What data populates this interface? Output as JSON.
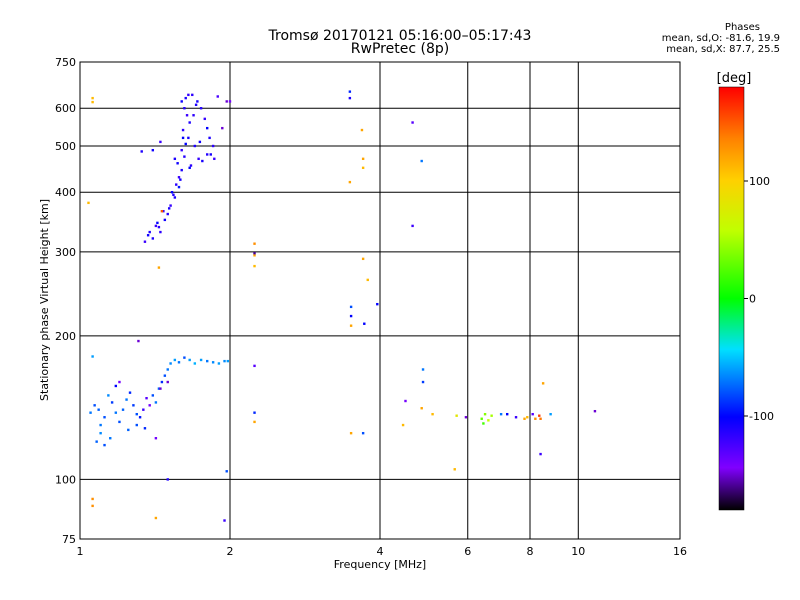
{
  "header": {
    "title": "Tromsø 20170121 05:16:00–05:17:43",
    "subtitle": "RwPretec (8p)"
  },
  "phases_legend": {
    "heading": "Phases",
    "line_o": "mean, sd,O: -81.6, 19.9",
    "line_x": "mean, sd,X:  87.7, 25.5"
  },
  "chart_data": {
    "type": "scatter",
    "title": "Tromsø 20170121 05:16:00–05:17:43",
    "subtitle": "RwPretec (8p)",
    "xlabel": "Frequency [MHz]",
    "ylabel": "Stationary phase Virtual Height [km]",
    "x_scale": "log",
    "y_scale": "log",
    "xlim": [
      1,
      16
    ],
    "ylim": [
      75,
      750
    ],
    "x_ticks": [
      1,
      2,
      4,
      6,
      8,
      10,
      16
    ],
    "x_tick_labels": [
      "1",
      "2",
      "4",
      "6",
      "8",
      "10",
      "16"
    ],
    "y_ticks": [
      75,
      100,
      200,
      300,
      400,
      500,
      600,
      750
    ],
    "y_tick_labels": [
      "75",
      "100",
      "200",
      "300",
      "400",
      "500",
      "600",
      "750"
    ],
    "grid": true,
    "colorbar": {
      "label": "[deg]",
      "range": [
        -180,
        180
      ],
      "ticks": [
        100,
        0,
        -100
      ],
      "tick_labels": [
        "100",
        "0",
        "-100"
      ]
    },
    "series": [
      {
        "points": [
          [
            1.4,
            320,
            -110
          ],
          [
            1.45,
            330,
            -115
          ],
          [
            1.42,
            340,
            -120
          ],
          [
            1.48,
            350,
            -105
          ],
          [
            1.5,
            360,
            -112
          ],
          [
            1.52,
            375,
            -118
          ],
          [
            1.55,
            390,
            -108
          ],
          [
            1.53,
            400,
            -100
          ],
          [
            1.56,
            415,
            -115
          ],
          [
            1.58,
            430,
            -120
          ],
          [
            1.6,
            445,
            -110
          ],
          [
            1.57,
            460,
            -105
          ],
          [
            1.62,
            475,
            -112
          ],
          [
            1.6,
            490,
            -118
          ],
          [
            1.63,
            505,
            -100
          ],
          [
            1.65,
            520,
            -108
          ],
          [
            1.61,
            540,
            -115
          ],
          [
            1.66,
            560,
            -110
          ],
          [
            1.64,
            580,
            -120
          ],
          [
            1.62,
            600,
            -112
          ],
          [
            1.6,
            620,
            -105
          ],
          [
            1.63,
            630,
            -110
          ],
          [
            1.68,
            640,
            -115
          ],
          [
            1.72,
            620,
            -108
          ],
          [
            1.75,
            600,
            -112
          ],
          [
            1.78,
            570,
            -118
          ],
          [
            1.8,
            545,
            -100
          ],
          [
            1.82,
            520,
            -110
          ],
          [
            1.85,
            500,
            -115
          ],
          [
            1.83,
            480,
            -108
          ],
          [
            1.86,
            470,
            -120
          ],
          [
            1.7,
            500,
            -110
          ],
          [
            1.67,
            455,
            -115
          ],
          [
            1.59,
            425,
            -108
          ],
          [
            1.54,
            395,
            -112
          ],
          [
            1.47,
            365,
            -118
          ],
          [
            1.43,
            345,
            -100
          ],
          [
            1.38,
            330,
            -110
          ],
          [
            1.35,
            315,
            -120
          ],
          [
            1.37,
            325,
            -105
          ],
          [
            1.44,
            338,
            -115
          ],
          [
            1.51,
            370,
            -110
          ],
          [
            1.58,
            410,
            -95
          ],
          [
            1.66,
            450,
            -100
          ],
          [
            1.74,
            510,
            -105
          ],
          [
            1.8,
            480,
            -112
          ],
          [
            1.76,
            465,
            -108
          ],
          [
            1.69,
            580,
            -115
          ],
          [
            1.71,
            610,
            -110
          ],
          [
            1.65,
            640,
            -118
          ],
          [
            1.97,
            620,
            -150
          ],
          [
            2.0,
            620,
            -140
          ],
          [
            1.93,
            545,
            -150
          ],
          [
            1.4,
            490,
            -105
          ],
          [
            1.33,
            487,
            -110
          ],
          [
            1.45,
            510,
            -120
          ],
          [
            1.89,
            635,
            -125
          ],
          [
            1.73,
            470,
            -118
          ],
          [
            1.55,
            470,
            -110
          ],
          [
            1.61,
            520,
            -100
          ],
          [
            1.06,
            630,
            110
          ],
          [
            1.06,
            618,
            110
          ],
          [
            1.04,
            380,
            110
          ],
          [
            1.44,
            278,
            120
          ],
          [
            1.46,
            365,
            150
          ],
          [
            1.31,
            195,
            -150
          ],
          [
            1.06,
            181,
            -60
          ],
          [
            1.07,
            143,
            -80
          ],
          [
            1.09,
            140,
            -75
          ],
          [
            1.1,
            130,
            -70
          ],
          [
            1.12,
            135,
            -80
          ],
          [
            1.14,
            150,
            -65
          ],
          [
            1.16,
            145,
            -85
          ],
          [
            1.18,
            138,
            -70
          ],
          [
            1.2,
            132,
            -80
          ],
          [
            1.22,
            140,
            -75
          ],
          [
            1.24,
            147,
            -70
          ],
          [
            1.26,
            152,
            -90
          ],
          [
            1.28,
            143,
            -85
          ],
          [
            1.3,
            137,
            -80
          ],
          [
            1.32,
            135,
            -95
          ],
          [
            1.34,
            140,
            -120
          ],
          [
            1.36,
            148,
            -130
          ],
          [
            1.38,
            143,
            -140
          ],
          [
            1.4,
            150,
            -80
          ],
          [
            1.42,
            145,
            -70
          ],
          [
            1.44,
            155,
            -75
          ],
          [
            1.46,
            160,
            -90
          ],
          [
            1.48,
            165,
            -80
          ],
          [
            1.5,
            170,
            -70
          ],
          [
            1.52,
            175,
            -65
          ],
          [
            1.55,
            178,
            -60
          ],
          [
            1.58,
            176,
            -70
          ],
          [
            1.62,
            180,
            -80
          ],
          [
            1.66,
            178,
            -60
          ],
          [
            1.7,
            175,
            -55
          ],
          [
            1.75,
            178,
            -60
          ],
          [
            1.8,
            177,
            -70
          ],
          [
            1.85,
            176,
            -65
          ],
          [
            1.9,
            175,
            -60
          ],
          [
            1.95,
            177,
            -65
          ],
          [
            1.98,
            177,
            -60
          ],
          [
            1.45,
            155,
            -150
          ],
          [
            1.42,
            122,
            -140
          ],
          [
            1.5,
            160,
            -150
          ],
          [
            1.2,
            160,
            -140
          ],
          [
            1.18,
            157,
            -100
          ],
          [
            1.35,
            128,
            -90
          ],
          [
            1.3,
            130,
            -80
          ],
          [
            1.25,
            127,
            -75
          ],
          [
            1.15,
            122,
            -70
          ],
          [
            1.1,
            125,
            -65
          ],
          [
            1.08,
            120,
            -75
          ],
          [
            1.12,
            118,
            -80
          ],
          [
            1.05,
            138,
            -70
          ],
          [
            1.06,
            91,
            130
          ],
          [
            1.06,
            88,
            130
          ],
          [
            1.42,
            83,
            120
          ],
          [
            1.5,
            100,
            -110
          ],
          [
            1.97,
            104,
            -80
          ],
          [
            1.95,
            82,
            -120
          ],
          [
            2.24,
            312,
            130
          ],
          [
            2.24,
            295,
            120
          ],
          [
            2.24,
            280,
            110
          ],
          [
            2.24,
            298,
            -160
          ],
          [
            2.24,
            173,
            -130
          ],
          [
            2.24,
            138,
            -90
          ],
          [
            2.24,
            132,
            120
          ],
          [
            3.48,
            650,
            -90
          ],
          [
            3.48,
            630,
            -110
          ],
          [
            3.48,
            420,
            120
          ],
          [
            3.68,
            540,
            120
          ],
          [
            3.7,
            470,
            120
          ],
          [
            3.7,
            450,
            110
          ],
          [
            3.7,
            290,
            120
          ],
          [
            3.78,
            262,
            110
          ],
          [
            3.5,
            230,
            -80
          ],
          [
            3.5,
            220,
            -100
          ],
          [
            3.5,
            210,
            120
          ],
          [
            3.72,
            212,
            -100
          ],
          [
            3.95,
            233,
            -100
          ],
          [
            3.5,
            125,
            120
          ],
          [
            3.7,
            125,
            -80
          ],
          [
            4.65,
            560,
            -130
          ],
          [
            4.65,
            340,
            -120
          ],
          [
            4.85,
            465,
            -70
          ],
          [
            4.88,
            170,
            -70
          ],
          [
            4.88,
            160,
            -85
          ],
          [
            4.5,
            146,
            -140
          ],
          [
            4.85,
            141,
            120
          ],
          [
            4.45,
            130,
            110
          ],
          [
            5.1,
            137,
            110
          ],
          [
            5.65,
            105,
            110
          ],
          [
            5.7,
            136,
            80
          ],
          [
            5.95,
            135,
            -150
          ],
          [
            6.4,
            134,
            30
          ],
          [
            6.5,
            137,
            40
          ],
          [
            6.6,
            133,
            60
          ],
          [
            6.7,
            136,
            50
          ],
          [
            6.45,
            131,
            20
          ],
          [
            7.0,
            137,
            -70
          ],
          [
            7.2,
            137,
            -100
          ],
          [
            7.5,
            135,
            -120
          ],
          [
            7.8,
            134,
            120
          ],
          [
            7.9,
            135,
            110
          ],
          [
            8.1,
            137,
            -130
          ],
          [
            8.2,
            134,
            130
          ],
          [
            8.4,
            134,
            140
          ],
          [
            8.5,
            159,
            120
          ],
          [
            8.35,
            136,
            160
          ],
          [
            8.8,
            137,
            -60
          ],
          [
            8.4,
            113,
            -120
          ],
          [
            10.8,
            139,
            -150
          ]
        ]
      }
    ]
  }
}
